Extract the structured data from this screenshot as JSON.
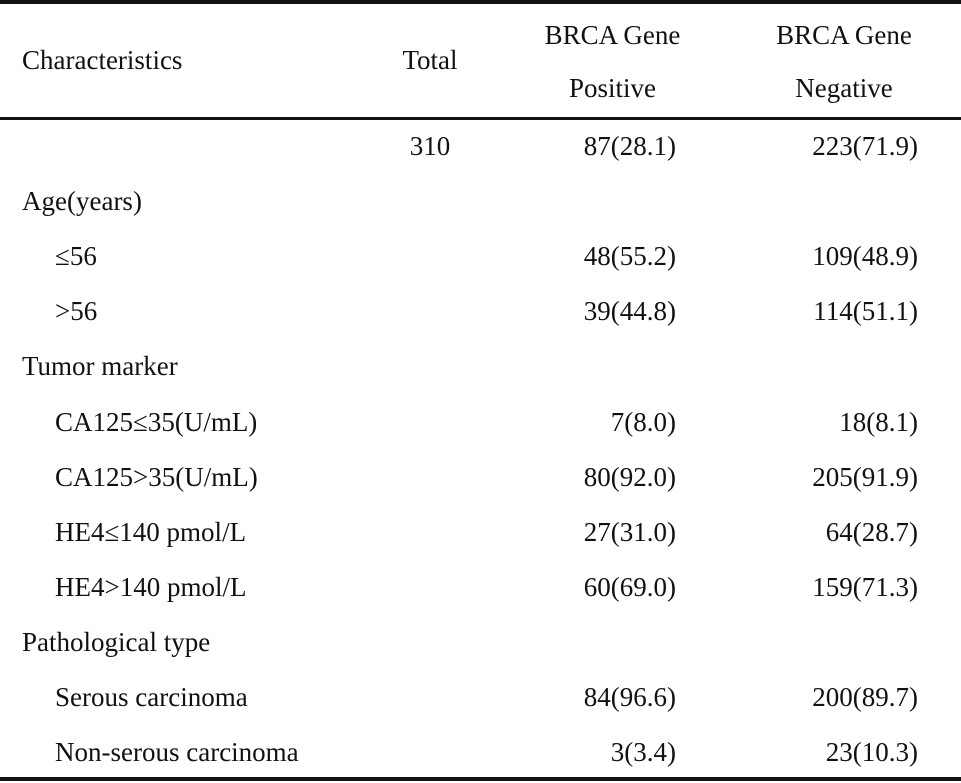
{
  "header": {
    "characteristics": "Characteristics",
    "total": "Total",
    "positive_line1": "BRCA Gene",
    "positive_line2": "Positive",
    "negative_line1": "BRCA Gene",
    "negative_line2": "Negative"
  },
  "rows": [
    {
      "label": "",
      "total": "310",
      "positive": "87(28.1)",
      "negative": "223(71.9)"
    },
    {
      "label": "Age(years)",
      "total": "",
      "positive": "",
      "negative": ""
    },
    {
      "label": "≤56",
      "total": "",
      "positive": "48(55.2)",
      "negative": "109(48.9)"
    },
    {
      "label": ">56",
      "total": "",
      "positive": "39(44.8)",
      "negative": "114(51.1)"
    },
    {
      "label": "Tumor marker",
      "total": "",
      "positive": "",
      "negative": ""
    },
    {
      "label": "CA125≤35(U/mL)",
      "total": "",
      "positive": "7(8.0)",
      "negative": "18(8.1)"
    },
    {
      "label": "CA125>35(U/mL)",
      "total": "",
      "positive": "80(92.0)",
      "negative": "205(91.9)"
    },
    {
      "label": "HE4≤140 pmol/L",
      "total": "",
      "positive": "27(31.0)",
      "negative": "64(28.7)"
    },
    {
      "label": "HE4>140 pmol/L",
      "total": "",
      "positive": "60(69.0)",
      "negative": "159(71.3)"
    },
    {
      "label": "Pathological type",
      "total": "",
      "positive": "",
      "negative": ""
    },
    {
      "label": "Serous carcinoma",
      "total": "",
      "positive": "84(96.6)",
      "negative": "200(89.7)"
    },
    {
      "label": "Non-serous carcinoma",
      "total": "",
      "positive": "3(3.4)",
      "negative": "23(10.3)"
    }
  ]
}
